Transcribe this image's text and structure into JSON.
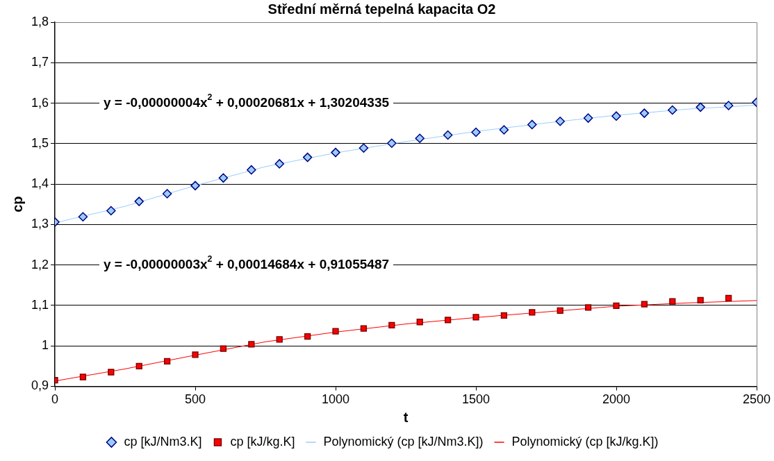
{
  "chart_data": {
    "type": "scatter",
    "title": "Střední měrná tepelná kapacita O2",
    "xlabel": "t",
    "ylabel": "cp",
    "x": [
      0,
      100,
      200,
      300,
      400,
      500,
      600,
      700,
      800,
      900,
      1000,
      1100,
      1200,
      1300,
      1400,
      1500,
      1600,
      1700,
      1800,
      1900,
      2000,
      2100,
      2200,
      2300,
      2400,
      2500
    ],
    "series": [
      {
        "name": "cp [kJ/Nm3.K]",
        "type": "scatter",
        "marker": "diamond",
        "color": "#99ccff",
        "values": [
          1.306,
          1.319,
          1.334,
          1.357,
          1.376,
          1.396,
          1.415,
          1.435,
          1.45,
          1.466,
          1.478,
          1.489,
          1.501,
          1.513,
          1.521,
          1.528,
          1.534,
          1.547,
          1.555,
          1.563,
          1.568,
          1.575,
          1.583,
          1.59,
          1.594,
          1.602
        ]
      },
      {
        "name": "cp [kJ/kg.K]",
        "type": "scatter",
        "marker": "square",
        "color": "#ff0000",
        "values": [
          0.915,
          0.923,
          0.935,
          0.95,
          0.962,
          0.978,
          0.993,
          1.004,
          1.016,
          1.023,
          1.036,
          1.043,
          1.051,
          1.059,
          1.064,
          1.071,
          1.075,
          1.083,
          1.087,
          1.095,
          1.099,
          1.103,
          1.11,
          1.113,
          1.118,
          null
        ]
      },
      {
        "name": "Polynomický (cp [kJ/Nm3.K])",
        "type": "line",
        "marker": "none",
        "color": "#99ccff",
        "x": [
          0,
          250,
          500,
          750,
          1000,
          1250,
          1500,
          1750,
          2000,
          2250,
          2500
        ],
        "values": [
          1.304,
          1.345,
          1.396,
          1.443,
          1.477,
          1.505,
          1.53,
          1.551,
          1.57,
          1.585,
          1.595
        ]
      },
      {
        "name": "Polynomický (cp [kJ/kg.K])",
        "type": "line",
        "marker": "none",
        "color": "#ff0000",
        "x": [
          0,
          250,
          500,
          750,
          1000,
          1250,
          1500,
          1750,
          2000,
          2250,
          2500
        ],
        "values": [
          0.913,
          0.943,
          0.977,
          1.01,
          1.034,
          1.054,
          1.07,
          1.084,
          1.098,
          1.106,
          1.112
        ]
      }
    ],
    "xlim": [
      0,
      2500
    ],
    "xticks": [
      0,
      500,
      1000,
      1500,
      2000,
      2500
    ],
    "ylim": [
      0.9,
      1.8
    ],
    "yticks": [
      {
        "value": 0.9,
        "label": "0,9"
      },
      1,
      {
        "value": 1.1,
        "label": "1,1"
      },
      {
        "value": 1.2,
        "label": "1,2"
      },
      {
        "value": 1.3,
        "label": "1,3"
      },
      {
        "value": 1.4,
        "label": "1,4"
      },
      {
        "value": 1.5,
        "label": "1,5"
      },
      {
        "value": 1.6,
        "label": "1,6"
      },
      {
        "value": 1.7,
        "label": "1,7"
      },
      {
        "value": 1.8,
        "label": "1,8"
      }
    ],
    "annotations": [
      "y = -0,00000004x$^{2}$ + 0,00020681x + 1,30204335",
      "y = -0,00000003x$^{2}$ + 0,00014684x + 0,91055487"
    ],
    "grid": "y",
    "legend": "bottom"
  }
}
